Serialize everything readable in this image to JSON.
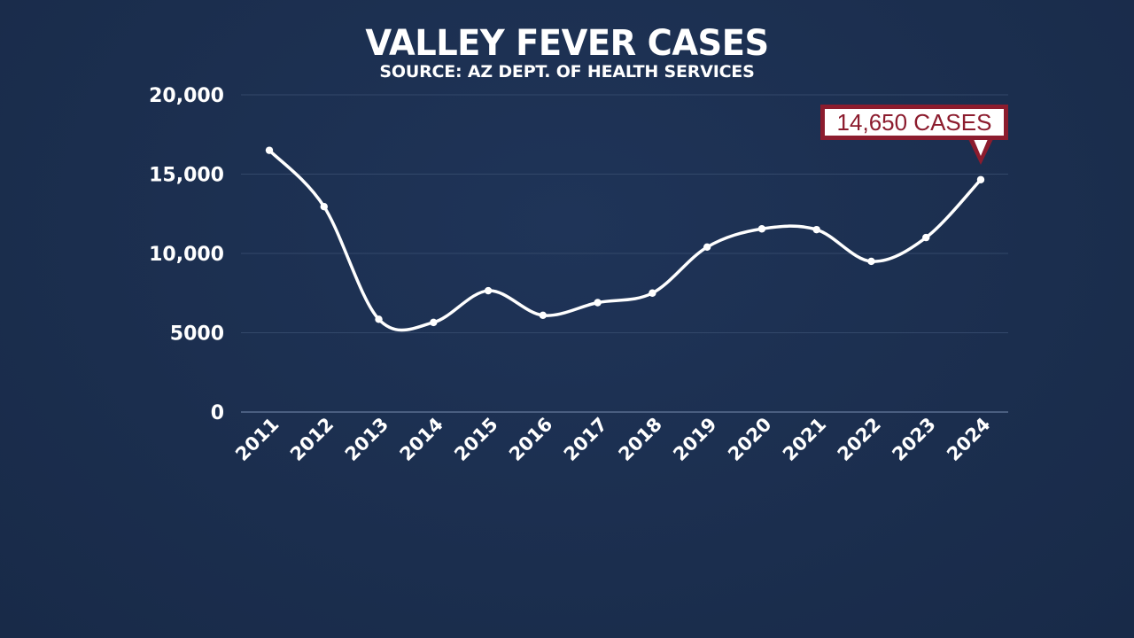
{
  "chart_data": {
    "type": "line",
    "title": "VALLEY FEVER CASES",
    "subtitle": "SOURCE: AZ DEPT. OF HEALTH SERVICES",
    "xlabel": "",
    "ylabel": "",
    "x": [
      "2011",
      "2012",
      "2013",
      "2014",
      "2015",
      "2016",
      "2017",
      "2018",
      "2019",
      "2020",
      "2021",
      "2022",
      "2023",
      "2024"
    ],
    "series": [
      {
        "values": [
          16500,
          12950,
          5850,
          5650,
          7650,
          6100,
          6900,
          7500,
          10400,
          11550,
          11500,
          9500,
          11000,
          14650
        ]
      }
    ],
    "ylim": [
      0,
      20000
    ],
    "yticks": [
      "0",
      "5000",
      "10,000",
      "15,000",
      "20,000"
    ],
    "ytick_values": [
      0,
      5000,
      10000,
      15000,
      20000
    ],
    "grid": true,
    "smooth": true,
    "annotation": {
      "text": "14,650 CASES",
      "target_category": "2024"
    },
    "colors": {
      "background": "#1b2e4e",
      "line": "#ffffff",
      "grid": "#33486a",
      "annotation_border": "#8c1c2e",
      "annotation_text": "#8c1c2e"
    }
  }
}
